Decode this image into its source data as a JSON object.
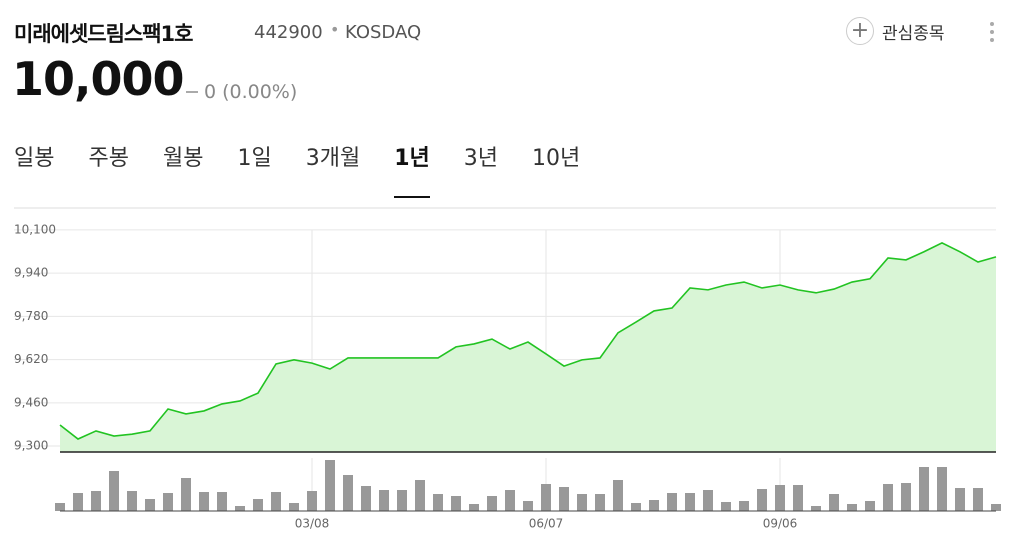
{
  "header": {
    "title": "미래에셋드림스팩1호",
    "code": "442900",
    "market": "KOSDAQ",
    "watch_button": "관심종목",
    "price": "10,000",
    "change": "0",
    "change_pct": "(0.00%)"
  },
  "tabs": [
    "일봉",
    "주봉",
    "월봉",
    "1일",
    "3개월",
    "1년",
    "3년",
    "10년"
  ],
  "active_tab": 5,
  "chart_data": [
    {
      "type": "line",
      "color": "#22c322",
      "fill": "#d9f5d6",
      "ylim": [
        9278,
        10181
      ],
      "yticks": [
        {
          "value": 9300,
          "label": "9,300"
        },
        {
          "value": 9460,
          "label": "9,460"
        },
        {
          "value": 9620,
          "label": "9,620"
        },
        {
          "value": 9780,
          "label": "9,780"
        },
        {
          "value": 9940,
          "label": "9,940"
        },
        {
          "value": 10100,
          "label": "10,100"
        }
      ],
      "grid": true,
      "values": [
        9378,
        9326,
        9356,
        9337,
        9344,
        9356,
        9437,
        9419,
        9430,
        9456,
        9467,
        9496,
        9604,
        9619,
        9607,
        9585,
        9626,
        9626,
        9626,
        9626,
        9626,
        9626,
        9667,
        9678,
        9696,
        9659,
        9685,
        9641,
        9596,
        9619,
        9626,
        9719,
        9759,
        9800,
        9811,
        9885,
        9878,
        9896,
        9907,
        9885,
        9896,
        9878,
        9867,
        9881,
        9907,
        9919,
        9996,
        9989,
        10019,
        10052,
        10019,
        9981,
        10000
      ]
    },
    {
      "type": "bar",
      "color": "#999999",
      "ylim": [
        0,
        53
      ],
      "categories": [
        null,
        null,
        null,
        null,
        null,
        null,
        null,
        null,
        null,
        null,
        null,
        null,
        null,
        null,
        "03/08",
        null,
        null,
        null,
        null,
        null,
        null,
        null,
        null,
        null,
        null,
        null,
        null,
        "06/07",
        null,
        null,
        null,
        null,
        null,
        null,
        null,
        null,
        null,
        null,
        null,
        null,
        "09/06",
        null,
        null,
        null,
        null,
        null,
        null,
        null,
        null,
        null,
        null,
        null,
        null
      ],
      "values": [
        8,
        18,
        20,
        40,
        20,
        12,
        18,
        33,
        19,
        19,
        5,
        12,
        19,
        8,
        20,
        51,
        36,
        25,
        21,
        21,
        31,
        17,
        15,
        7,
        15,
        21,
        10,
        27,
        24,
        17,
        17,
        31,
        8,
        11,
        18,
        18,
        21,
        9,
        10,
        22,
        26,
        26,
        5,
        17,
        7,
        10,
        27,
        28,
        44,
        44,
        23,
        23,
        7
      ]
    }
  ]
}
